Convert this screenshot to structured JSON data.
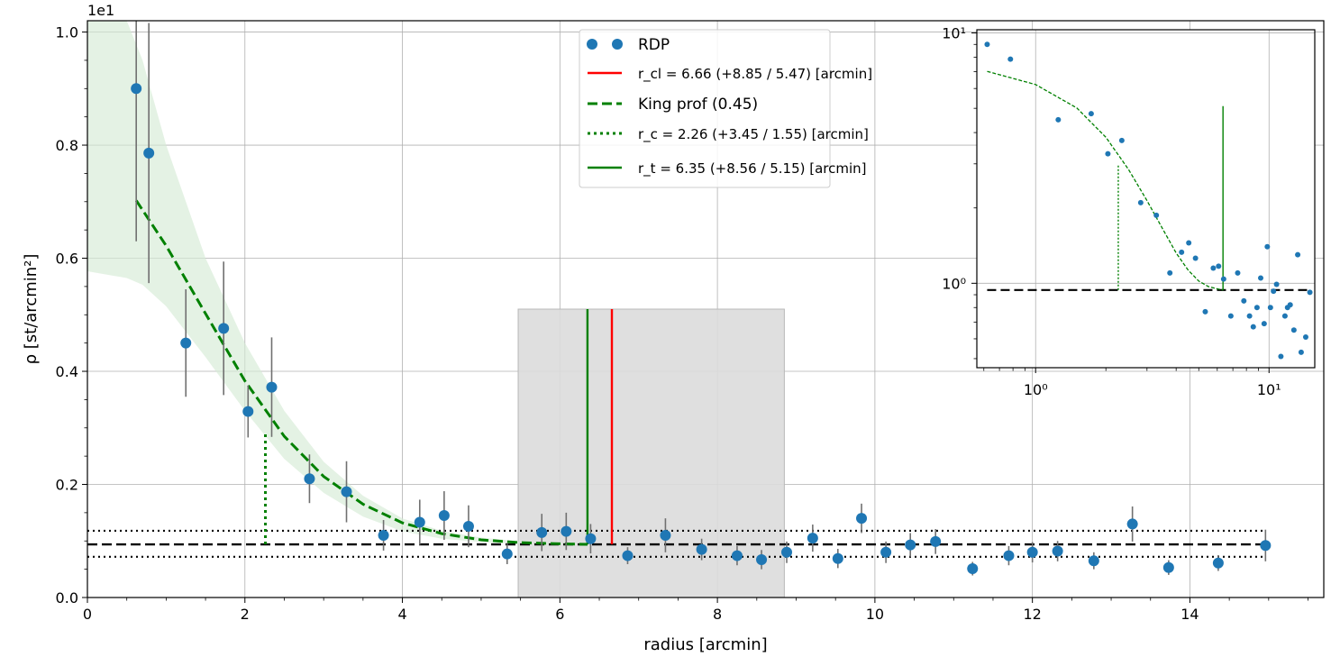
{
  "chart_data": {
    "type": "scatter",
    "main": {
      "xlabel": "radius [arcmin]",
      "ylabel": "ρ [st/arcmin²]",
      "offset_label": "1e1",
      "xlim": [
        0,
        15.7
      ],
      "ylim": [
        0,
        1.02
      ],
      "xticks": [
        "0",
        "2",
        "4",
        "6",
        "8",
        "10",
        "12",
        "14"
      ],
      "yticks": [
        "0.0",
        "0.2",
        "0.4",
        "0.6",
        "0.8",
        "1.0"
      ],
      "grid": true,
      "series": [
        {
          "name": "RDP",
          "kind": "errorbar-points",
          "x": [
            0.62,
            0.78,
            1.25,
            1.73,
            2.04,
            2.34,
            2.82,
            3.29,
            3.76,
            4.22,
            4.53,
            4.84,
            5.33,
            5.77,
            6.08,
            6.39,
            6.86,
            7.34,
            7.8,
            8.25,
            8.56,
            8.88,
            9.21,
            9.53,
            9.83,
            10.14,
            10.45,
            10.77,
            11.24,
            11.7,
            12.0,
            12.32,
            12.78,
            13.27,
            13.73,
            14.36,
            14.96
          ],
          "y": [
            0.9,
            0.786,
            0.45,
            0.476,
            0.329,
            0.372,
            0.21,
            0.187,
            0.11,
            0.133,
            0.145,
            0.126,
            0.077,
            0.115,
            0.117,
            0.104,
            0.074,
            0.11,
            0.085,
            0.074,
            0.067,
            0.08,
            0.105,
            0.069,
            0.14,
            0.08,
            0.093,
            0.099,
            0.051,
            0.074,
            0.08,
            0.082,
            0.065,
            0.13,
            0.053,
            0.061,
            0.092
          ],
          "yerr": [
            0.27,
            0.23,
            0.095,
            0.118,
            0.046,
            0.088,
            0.043,
            0.054,
            0.027,
            0.04,
            0.043,
            0.037,
            0.018,
            0.033,
            0.033,
            0.026,
            0.015,
            0.03,
            0.019,
            0.017,
            0.017,
            0.019,
            0.024,
            0.017,
            0.026,
            0.019,
            0.021,
            0.022,
            0.012,
            0.017,
            0.018,
            0.018,
            0.015,
            0.031,
            0.013,
            0.014,
            0.028
          ]
        }
      ],
      "king_curve": {
        "x": [
          0.62,
          1.0,
          1.5,
          2.0,
          2.5,
          3.0,
          3.5,
          4.0,
          4.5,
          5.0,
          5.5,
          6.0,
          6.35
        ],
        "y": [
          0.702,
          0.622,
          0.502,
          0.383,
          0.285,
          0.214,
          0.165,
          0.132,
          0.113,
          0.102,
          0.097,
          0.095,
          0.094
        ]
      },
      "king_band": {
        "x": [
          0.0,
          0.5,
          0.7,
          1.0,
          1.5,
          2.0,
          2.5,
          3.0,
          3.5,
          4.0,
          4.5,
          5.0,
          5.5,
          6.0,
          6.35
        ],
        "upper": [
          1.02,
          1.02,
          0.95,
          0.8,
          0.6,
          0.45,
          0.33,
          0.24,
          0.18,
          0.14,
          0.118,
          0.106,
          0.099,
          0.096,
          0.094
        ],
        "lower": [
          0.577,
          0.565,
          0.553,
          0.515,
          0.425,
          0.33,
          0.245,
          0.185,
          0.143,
          0.117,
          0.104,
          0.098,
          0.095,
          0.094,
          0.094
        ]
      },
      "background_level": 0.094,
      "background_band": [
        0.072,
        0.118
      ],
      "shaded_region": {
        "x": [
          5.47,
          8.85
        ],
        "y": [
          0,
          0.51
        ]
      },
      "r_cl": 6.66,
      "r_cl_top": 0.51,
      "r_c": 2.26,
      "r_c_top": 0.29,
      "r_t": 6.35,
      "r_t_top": 0.51,
      "legend_position": "upper-center",
      "legend": [
        {
          "key": "rdp",
          "text": "RDP"
        },
        {
          "key": "rcl",
          "text": "r_cl = 6.66 (+8.85 / 5.47) [arcmin]"
        },
        {
          "key": "king",
          "text": "King prof (0.45)"
        },
        {
          "key": "rc",
          "text": "r_c = 2.26 (+3.45 / 1.55) [arcmin]"
        },
        {
          "key": "rt",
          "text": "r_t = 6.35 (+8.56 / 5.15) [arcmin]"
        }
      ]
    },
    "inset": {
      "scale": "log-log",
      "xlim": [
        0.56,
        15.7
      ],
      "ylim": [
        0.46,
        10.3
      ],
      "xticks": [
        {
          "value": 1,
          "label": "10⁰"
        },
        {
          "value": 10,
          "label": "10¹"
        }
      ],
      "yticks": [
        {
          "value": 1,
          "label": "10⁰"
        },
        {
          "value": 10,
          "label": "10¹"
        }
      ],
      "points": {
        "x": [
          0.62,
          0.78,
          1.25,
          1.73,
          2.04,
          2.34,
          2.82,
          3.29,
          3.76,
          4.22,
          4.53,
          4.84,
          5.33,
          5.77,
          6.08,
          6.39,
          6.86,
          7.34,
          7.8,
          8.25,
          8.56,
          8.88,
          9.21,
          9.53,
          9.83,
          10.14,
          10.45,
          10.77,
          11.24,
          11.7,
          12.0,
          12.32,
          12.78,
          13.27,
          13.73,
          14.36,
          14.96
        ],
        "y": [
          9.0,
          7.86,
          4.5,
          4.76,
          3.29,
          3.72,
          2.1,
          1.87,
          1.1,
          1.33,
          1.45,
          1.26,
          0.77,
          1.15,
          1.17,
          1.04,
          0.74,
          1.1,
          0.85,
          0.74,
          0.67,
          0.8,
          1.05,
          0.69,
          1.4,
          0.8,
          0.93,
          0.99,
          0.51,
          0.74,
          0.8,
          0.82,
          0.65,
          1.3,
          0.53,
          0.61,
          0.92
        ]
      },
      "king_curve": {
        "x": [
          0.62,
          1.0,
          1.5,
          2.0,
          2.5,
          3.0,
          3.5,
          4.0,
          4.5,
          5.0,
          5.5,
          6.0,
          6.35
        ],
        "y": [
          7.02,
          6.22,
          5.02,
          3.83,
          2.85,
          2.14,
          1.65,
          1.32,
          1.13,
          1.02,
          0.97,
          0.95,
          0.94
        ]
      },
      "background_level": 0.94,
      "r_c": 2.26,
      "r_c_top": 3.0,
      "r_t": 6.35,
      "r_t_top": 5.1
    }
  }
}
